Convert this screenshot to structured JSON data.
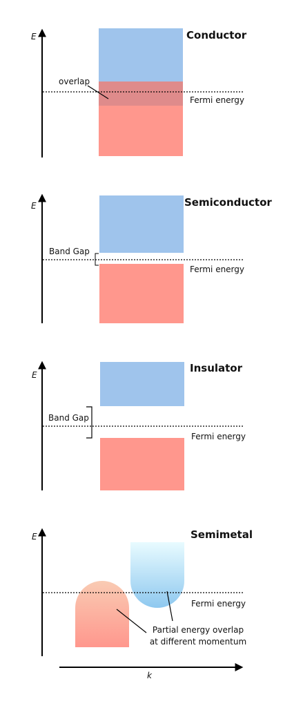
{
  "colors": {
    "conduction_band": "#9fc4ec",
    "valence_band": "#ff978d",
    "overlap_band": "#df8b8b",
    "semimetal_top_light": "#e8fbff",
    "semimetal_top_dark": "#8ec8ef",
    "semimetal_bottom_light": "#f9cbb3",
    "semimetal_bottom_dark": "#ff978d",
    "line": "#000000"
  },
  "energy_axis_label": "E",
  "momentum_axis_label": "k",
  "panels": {
    "conductor": {
      "title": "Conductor",
      "overlap_label": "overlap",
      "fermi_label": "Fermi energy"
    },
    "semiconductor": {
      "title": "Semiconductor",
      "gap_label": "Band Gap",
      "fermi_label": "Fermi energy"
    },
    "insulator": {
      "title": "Insulator",
      "gap_label": "Band Gap",
      "fermi_label": "Fermi energy"
    },
    "semimetal": {
      "title": "Semimetal",
      "fermi_label": "Fermi energy",
      "overlap_note_line1": "Partial energy overlap",
      "overlap_note_line2": "at different momentum"
    }
  }
}
